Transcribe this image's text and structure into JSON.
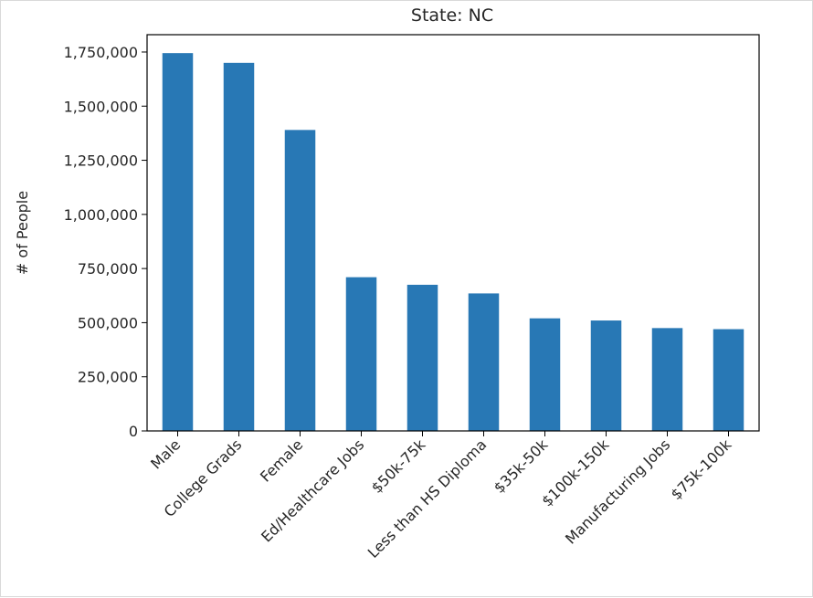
{
  "chart_data": {
    "type": "bar",
    "title": "State: NC",
    "xlabel": "",
    "ylabel": "# of People",
    "categories": [
      "Male",
      "College Grads",
      "Female",
      "Ed/Healthcare Jobs",
      "$50k-75k",
      "Less than HS Diploma",
      "$35k-50k",
      "$100k-150k",
      "Manufacturing Jobs",
      "$75k-100k"
    ],
    "values": [
      1745000,
      1700000,
      1390000,
      710000,
      675000,
      635000,
      520000,
      510000,
      475000,
      470000
    ],
    "ylim": [
      0,
      1830000
    ],
    "yticks": [
      0,
      250000,
      500000,
      750000,
      1000000,
      1250000,
      1500000,
      1750000
    ],
    "ytick_labels": [
      "0",
      "250,000",
      "500,000",
      "750,000",
      "1,000,000",
      "1,250,000",
      "1,500,000",
      "1,750,000"
    ],
    "bar_color": "#2878b5",
    "grid": false,
    "legend": "none"
  }
}
